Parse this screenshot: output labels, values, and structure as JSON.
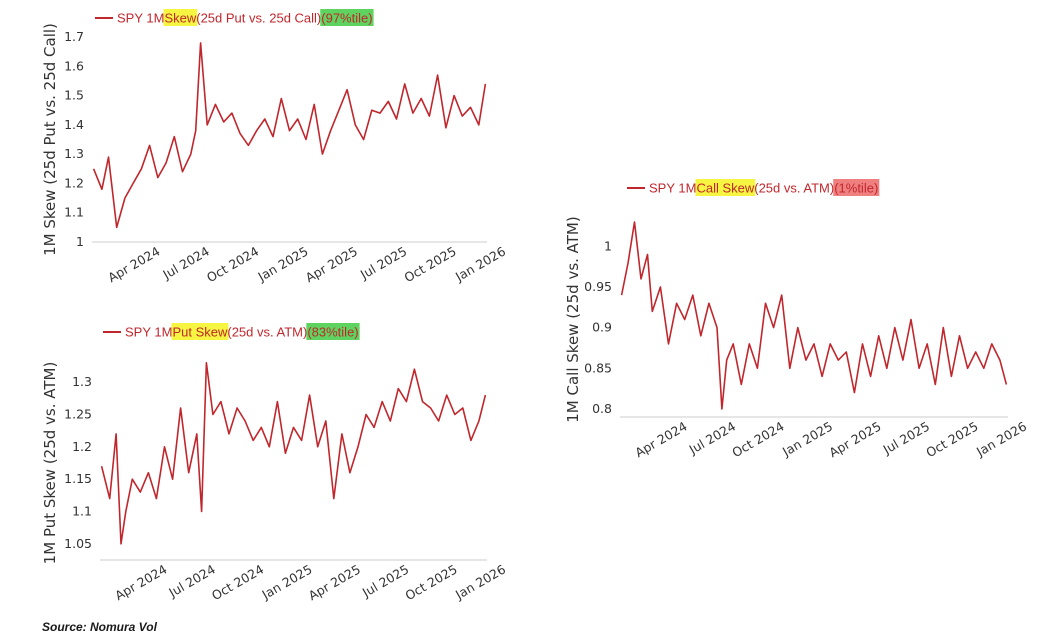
{
  "source": "Source: Nomura Vol",
  "colors": {
    "series": "#c0272d",
    "highlight_yellow": "#f5f542",
    "highlight_green": "#5fd35f",
    "highlight_red": "#f08080",
    "axis": "#cccccc"
  },
  "chart_data": [
    {
      "type": "line",
      "legend_parts": [
        {
          "text": "SPY 1M ",
          "hl": ""
        },
        {
          "text": "Skew",
          "hl": "yellow"
        },
        {
          "text": " (25d Put vs. 25d Call) ",
          "hl": ""
        },
        {
          "text": "(97%tile)",
          "hl": "green"
        }
      ],
      "ylabel": "1M Skew (25d Put vs. 25d Call)",
      "ylim": [
        1.0,
        1.7
      ],
      "yticks": [
        1,
        1.1,
        1.2,
        1.3,
        1.4,
        1.5,
        1.6,
        1.7
      ],
      "ytick_labels": [
        "1",
        "1.1",
        "1.2",
        "1.3",
        "1.4",
        "1.5",
        "1.6",
        "1.7"
      ],
      "xlim": [
        0,
        24
      ],
      "xticks": [
        3,
        6,
        9,
        12,
        15,
        18,
        21,
        24
      ],
      "xtick_labels": [
        "Apr 2024",
        "Jul 2024",
        "Oct 2024",
        "Jan 2025",
        "Apr 2025",
        "Jul 2025",
        "Oct 2025",
        "Jan 2026"
      ],
      "x": [
        0.1,
        0.6,
        1.0,
        1.5,
        2.0,
        2.5,
        3.0,
        3.5,
        4.0,
        4.5,
        5.0,
        5.5,
        6.0,
        6.3,
        6.6,
        7.0,
        7.5,
        8.0,
        8.5,
        9.0,
        9.5,
        10.0,
        10.5,
        11.0,
        11.5,
        12.0,
        12.5,
        13.0,
        13.5,
        14.0,
        14.5,
        15.0,
        15.5,
        16.0,
        16.5,
        17.0,
        17.5,
        18.0,
        18.5,
        19.0,
        19.5,
        20.0,
        20.5,
        21.0,
        21.5,
        22.0,
        22.5,
        23.0,
        23.5,
        23.9
      ],
      "values": [
        1.25,
        1.18,
        1.29,
        1.05,
        1.15,
        1.2,
        1.25,
        1.33,
        1.22,
        1.27,
        1.36,
        1.24,
        1.3,
        1.38,
        1.68,
        1.4,
        1.47,
        1.41,
        1.44,
        1.37,
        1.33,
        1.38,
        1.42,
        1.36,
        1.49,
        1.38,
        1.42,
        1.35,
        1.47,
        1.3,
        1.38,
        1.45,
        1.52,
        1.4,
        1.35,
        1.45,
        1.44,
        1.48,
        1.42,
        1.54,
        1.44,
        1.49,
        1.43,
        1.57,
        1.39,
        1.5,
        1.43,
        1.46,
        1.4,
        1.54
      ]
    },
    {
      "type": "line",
      "legend_parts": [
        {
          "text": "SPY 1M ",
          "hl": ""
        },
        {
          "text": "Put Skew",
          "hl": "yellow"
        },
        {
          "text": " (25d vs. ATM) ",
          "hl": ""
        },
        {
          "text": "(83%tile)",
          "hl": "green"
        }
      ],
      "ylabel": "1M Put Skew (25d vs. ATM)",
      "ylim": [
        1.025,
        1.325
      ],
      "yticks": [
        1.05,
        1.1,
        1.15,
        1.2,
        1.25,
        1.3
      ],
      "ytick_labels": [
        "1.05",
        "1.1",
        "1.15",
        "1.2",
        "1.25",
        "1.3"
      ],
      "xlim": [
        0,
        24
      ],
      "xticks": [
        3,
        6,
        9,
        12,
        15,
        18,
        21,
        24
      ],
      "xtick_labels": [
        "Apr 2024",
        "Jul 2024",
        "Oct 2024",
        "Jan 2025",
        "Apr 2025",
        "Jul 2025",
        "Oct 2025",
        "Jan 2026"
      ],
      "x": [
        0.1,
        0.6,
        1.0,
        1.3,
        1.6,
        2.0,
        2.5,
        3.0,
        3.5,
        4.0,
        4.5,
        5.0,
        5.5,
        6.0,
        6.3,
        6.6,
        7.0,
        7.5,
        8.0,
        8.5,
        9.0,
        9.5,
        10.0,
        10.5,
        11.0,
        11.5,
        12.0,
        12.5,
        13.0,
        13.5,
        14.0,
        14.5,
        15.0,
        15.5,
        16.0,
        16.5,
        17.0,
        17.5,
        18.0,
        18.5,
        19.0,
        19.5,
        20.0,
        20.5,
        21.0,
        21.5,
        22.0,
        22.5,
        23.0,
        23.5,
        23.9
      ],
      "values": [
        1.17,
        1.12,
        1.22,
        1.05,
        1.1,
        1.15,
        1.13,
        1.16,
        1.12,
        1.2,
        1.15,
        1.26,
        1.16,
        1.22,
        1.1,
        1.33,
        1.25,
        1.27,
        1.22,
        1.26,
        1.24,
        1.21,
        1.23,
        1.2,
        1.27,
        1.19,
        1.23,
        1.21,
        1.28,
        1.2,
        1.24,
        1.12,
        1.22,
        1.16,
        1.2,
        1.25,
        1.23,
        1.27,
        1.24,
        1.29,
        1.27,
        1.32,
        1.27,
        1.26,
        1.24,
        1.28,
        1.25,
        1.26,
        1.21,
        1.24,
        1.28
      ]
    },
    {
      "type": "line",
      "legend_parts": [
        {
          "text": "SPY 1M ",
          "hl": ""
        },
        {
          "text": "Call Skew",
          "hl": "yellow"
        },
        {
          "text": " (25d vs. ATM) ",
          "hl": ""
        },
        {
          "text": "(1%tile)",
          "hl": "red"
        }
      ],
      "ylabel": "1M Call Skew (25d vs. ATM)",
      "ylim": [
        0.79,
        1.03
      ],
      "yticks": [
        0.8,
        0.85,
        0.9,
        0.95,
        1
      ],
      "ytick_labels": [
        "0.8",
        "0.85",
        "0.9",
        "0.95",
        "1"
      ],
      "xlim": [
        0,
        24
      ],
      "xticks": [
        3,
        6,
        9,
        12,
        15,
        18,
        21,
        24
      ],
      "xtick_labels": [
        "Apr 2024",
        "Jul 2024",
        "Oct 2024",
        "Jan 2025",
        "Apr 2025",
        "Jul 2025",
        "Oct 2025",
        "Jan 2026"
      ],
      "x": [
        0.1,
        0.5,
        0.9,
        1.3,
        1.7,
        2.0,
        2.5,
        3.0,
        3.5,
        4.0,
        4.5,
        5.0,
        5.5,
        6.0,
        6.3,
        6.6,
        7.0,
        7.5,
        8.0,
        8.5,
        9.0,
        9.5,
        10.0,
        10.5,
        11.0,
        11.5,
        12.0,
        12.5,
        13.0,
        13.5,
        14.0,
        14.5,
        15.0,
        15.5,
        16.0,
        16.5,
        17.0,
        17.5,
        18.0,
        18.5,
        19.0,
        19.5,
        20.0,
        20.5,
        21.0,
        21.5,
        22.0,
        22.5,
        23.0,
        23.5,
        23.9
      ],
      "values": [
        0.94,
        0.98,
        1.03,
        0.96,
        0.99,
        0.92,
        0.95,
        0.88,
        0.93,
        0.91,
        0.94,
        0.89,
        0.93,
        0.9,
        0.8,
        0.86,
        0.88,
        0.83,
        0.88,
        0.85,
        0.93,
        0.9,
        0.94,
        0.85,
        0.9,
        0.86,
        0.88,
        0.84,
        0.88,
        0.86,
        0.87,
        0.82,
        0.88,
        0.84,
        0.89,
        0.85,
        0.9,
        0.86,
        0.91,
        0.85,
        0.88,
        0.83,
        0.9,
        0.84,
        0.89,
        0.85,
        0.87,
        0.85,
        0.88,
        0.86,
        0.83
      ]
    }
  ]
}
